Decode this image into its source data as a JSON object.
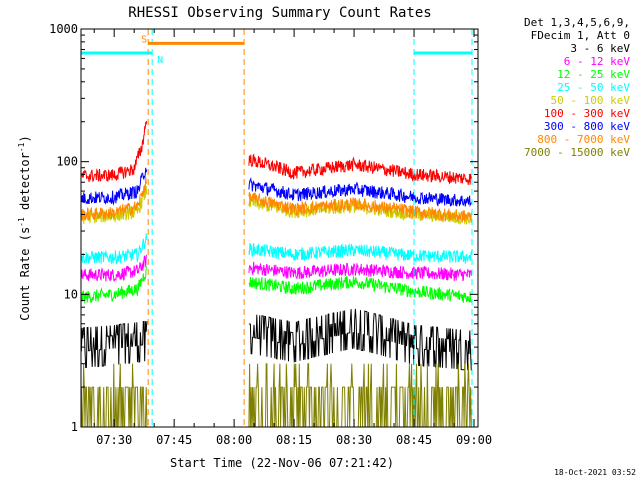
{
  "chart_data": {
    "type": "line",
    "title": "RHESSI Observing Summary Count Rates",
    "xlabel": "Start Time (22-Nov-06 07:21:42)",
    "ylabel_main": "Count Rate (s",
    "ylabel_sup1": "-1",
    "ylabel_mid": " detector",
    "ylabel_sup2": "-1",
    "ylabel_end": ")",
    "x_ticks": [
      "07:30",
      "07:45",
      "08:00",
      "08:15",
      "08:30",
      "08:45",
      "09:00"
    ],
    "x_tick_minutes": [
      30,
      45,
      60,
      75,
      90,
      105,
      120
    ],
    "xlim_minutes": [
      21.7,
      121
    ],
    "y_scale": "log",
    "ylim": [
      1,
      1000
    ],
    "y_ticks": [
      "1",
      "10",
      "100",
      "1000"
    ],
    "y_tick_values": [
      1,
      10,
      100,
      1000
    ],
    "legend_header": [
      "Det 1,3,4,5,6,9,",
      "FDecim 1, Att 0"
    ],
    "legend_position": "right",
    "data_gap_minutes": [
      38.5,
      62.5
    ],
    "series": [
      {
        "name": "3 - 6 keV",
        "color": "#000000",
        "x": [
          22,
          30,
          38,
          63,
          75,
          90,
          105,
          120
        ],
        "y": [
          4.0,
          4.2,
          4.5,
          5.2,
          4.4,
          5.6,
          4.2,
          3.8
        ]
      },
      {
        "name": "6 - 12 keV",
        "color": "#ff00ff",
        "x": [
          22,
          30,
          36,
          38,
          63,
          75,
          90,
          105,
          120
        ],
        "y": [
          14,
          14,
          15,
          18,
          16,
          14.5,
          15.5,
          14.5,
          14
        ]
      },
      {
        "name": "12 - 25 keV",
        "color": "#00ff00",
        "x": [
          22,
          30,
          36,
          38,
          63,
          75,
          90,
          105,
          120
        ],
        "y": [
          9.5,
          10,
          11,
          15,
          12.5,
          11,
          12.5,
          10.5,
          9.5
        ]
      },
      {
        "name": "25 - 50 keV",
        "color": "#00ffff",
        "x": [
          22,
          30,
          36,
          38,
          63,
          75,
          90,
          105,
          120
        ],
        "y": [
          19,
          19,
          20,
          26,
          22,
          20,
          21.5,
          19.5,
          19
        ]
      },
      {
        "name": "50 - 100 keV",
        "color": "#cccc00",
        "x": [
          22,
          30,
          36,
          38,
          63,
          75,
          90,
          105,
          120
        ],
        "y": [
          38,
          39,
          42,
          60,
          50,
          42,
          46,
          40,
          37
        ]
      },
      {
        "name": "100 - 300 keV",
        "color": "#ff0000",
        "x": [
          22,
          30,
          35,
          37,
          38,
          63,
          75,
          90,
          105,
          120
        ],
        "y": [
          78,
          79,
          88,
          130,
          200,
          105,
          82,
          95,
          80,
          74
        ]
      },
      {
        "name": "300 - 800 keV",
        "color": "#0000ff",
        "x": [
          22,
          30,
          36,
          38,
          63,
          75,
          90,
          105,
          120
        ],
        "y": [
          53,
          54,
          60,
          90,
          68,
          56,
          62,
          54,
          50
        ]
      },
      {
        "name": "800 - 7000 keV",
        "color": "#ff8800",
        "x": [
          22,
          30,
          36,
          38,
          63,
          75,
          90,
          105,
          120
        ],
        "y": [
          40,
          41,
          46,
          70,
          54,
          44,
          48,
          42,
          38
        ]
      },
      {
        "name": "7000 - 15000 keV",
        "color": "#808000",
        "x": [
          22,
          38,
          63,
          120
        ],
        "y": [
          1.6,
          1.6,
          1.7,
          1.6
        ]
      }
    ],
    "flag_bars": [
      {
        "label": "S",
        "color": "#ff8800",
        "x0": 38.5,
        "x1": 62.5,
        "y": 780
      },
      {
        "label": "N",
        "color": "#00ffff",
        "x0": 21.7,
        "x1": 39.5,
        "y": 660
      },
      {
        "label": "",
        "color": "#00ffff",
        "x0": 105,
        "x1": 119.5,
        "y": 660
      }
    ],
    "vlines": [
      {
        "x": 38.5,
        "color": "#ff8800"
      },
      {
        "x": 39.5,
        "color": "#00ffff"
      },
      {
        "x": 62.5,
        "color": "#ff8800"
      },
      {
        "x": 105,
        "color": "#00ffff"
      },
      {
        "x": 119.5,
        "color": "#00ffff"
      }
    ]
  },
  "footer_timestamp": "18-Oct-2021 03:52"
}
